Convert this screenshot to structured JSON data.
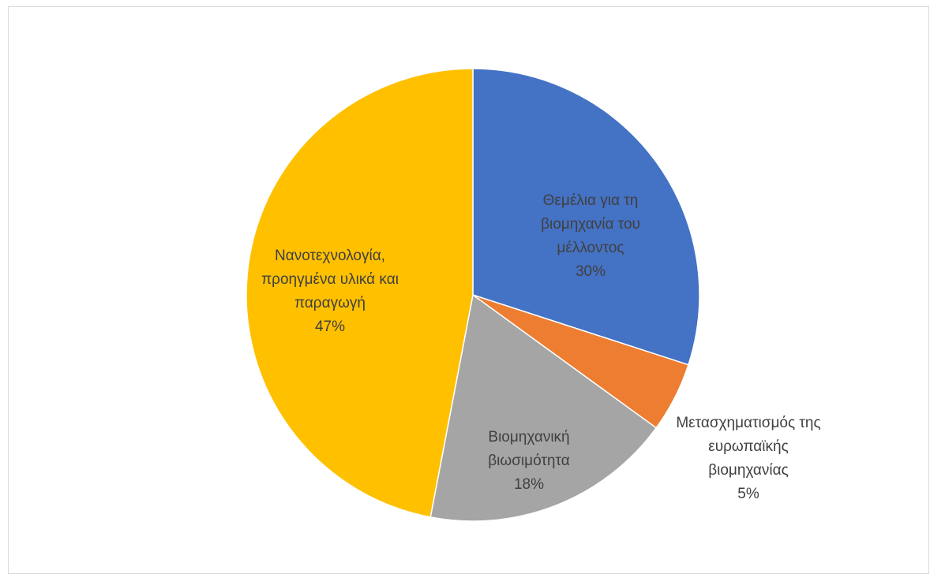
{
  "chart_data": {
    "type": "pie",
    "categories": [
      "Θεμέλια για τη βιομηχανία του μέλλοντος",
      "Μετασχηματισμός της ευρωπαϊκής βιομηχανίας",
      "Βιομηχανική βιωσιμότητα",
      "Νανοτεχνολογία, προηγμένα υλικά και παραγωγή"
    ],
    "values": [
      30,
      5,
      18,
      47
    ],
    "value_labels": [
      "30%",
      "5%",
      "18%",
      "47%"
    ],
    "colors": [
      "#4472c4",
      "#ed7d31",
      "#a5a5a5",
      "#ffc000"
    ]
  }
}
